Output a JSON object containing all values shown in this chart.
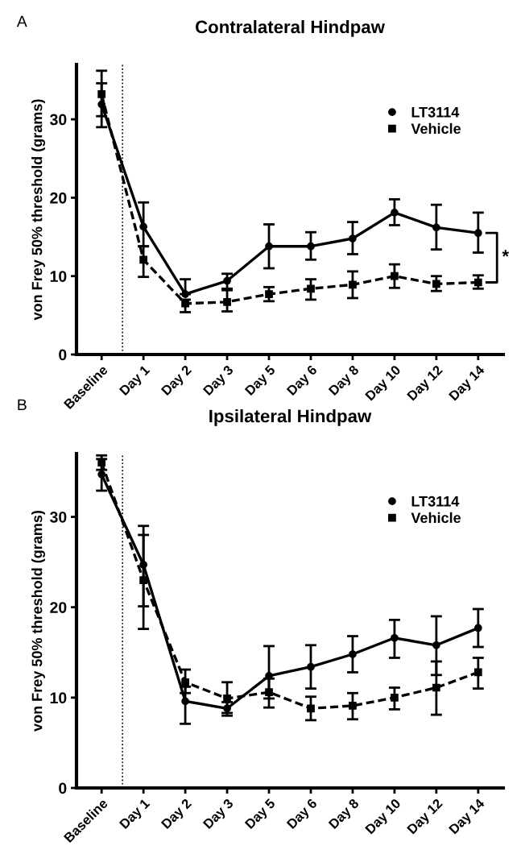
{
  "chart_data": [
    {
      "type": "line",
      "title": "Contralateral Hindpaw",
      "ylabel": "von Frey 50% threshold (grams)",
      "annotations": [
        "A",
        "*"
      ],
      "categories": [
        "Baseline",
        "Day 1",
        "Day 2",
        "Day 3",
        "Day 5",
        "Day 6",
        "Day 8",
        "Day 10",
        "Day 12",
        "Day 14"
      ],
      "series": [
        {
          "name": "LT3114",
          "color": "#000000",
          "marker": "circle",
          "line_style": "solid",
          "values": [
            31.9,
            16.3,
            7.7,
            9.4,
            13.8,
            13.8,
            14.8,
            18.1,
            16.2,
            15.5
          ],
          "errors": [
            [
              29.0,
              34.6
            ],
            [
              13.8,
              19.4
            ],
            [
              7.7,
              9.6
            ],
            [
              8.4,
              10.3
            ],
            [
              11.0,
              16.6
            ],
            [
              12.1,
              15.6
            ],
            [
              12.8,
              16.9
            ],
            [
              16.5,
              19.8
            ],
            [
              13.4,
              19.1
            ],
            [
              13.0,
              18.1
            ]
          ]
        },
        {
          "name": "Vehicle",
          "color": "#000000",
          "marker": "square",
          "line_style": "dashed",
          "values": [
            33.2,
            12.1,
            6.5,
            6.7,
            7.7,
            8.4,
            8.9,
            10.0,
            9.0,
            9.2
          ],
          "errors": [
            [
              30.4,
              36.2
            ],
            [
              9.9,
              13.8
            ],
            [
              5.4,
              7.0
            ],
            [
              5.5,
              8.2
            ],
            [
              6.8,
              8.6
            ],
            [
              7.0,
              9.6
            ],
            [
              7.2,
              10.6
            ],
            [
              8.5,
              11.5
            ],
            [
              8.1,
              10.0
            ],
            [
              8.4,
              10.1
            ]
          ]
        }
      ],
      "ylim": [
        0,
        37
      ],
      "yticks": [
        0,
        10,
        20,
        30
      ],
      "grid": false,
      "legend": "top right"
    },
    {
      "type": "line",
      "title": "Ipsilateral Hindpaw",
      "ylabel": "von Frey 50% threshold (grams)",
      "annotations": [
        "B"
      ],
      "categories": [
        "Baseline",
        "Day 1",
        "Day 2",
        "Day 3",
        "Day 5",
        "Day 6",
        "Day 8",
        "Day 10",
        "Day 12",
        "Day 14"
      ],
      "series": [
        {
          "name": "LT3114",
          "color": "#000000",
          "marker": "circle",
          "line_style": "solid",
          "values": [
            34.7,
            24.7,
            9.6,
            8.8,
            12.4,
            13.4,
            14.8,
            16.6,
            15.8,
            17.7
          ],
          "errors": [
            [
              32.9,
              36.4
            ],
            [
              17.6,
              29.0
            ],
            [
              7.1,
              11.2
            ],
            [
              8.0,
              9.5
            ],
            [
              9.9,
              15.7
            ],
            [
              11.0,
              15.8
            ],
            [
              12.8,
              16.8
            ],
            [
              14.4,
              18.6
            ],
            [
              12.5,
              19.0
            ],
            [
              15.6,
              19.8
            ]
          ]
        },
        {
          "name": "Vehicle",
          "color": "#000000",
          "marker": "square",
          "line_style": "dashed",
          "values": [
            36.0,
            23.0,
            11.7,
            9.9,
            10.6,
            8.8,
            9.1,
            10.0,
            11.1,
            12.8
          ],
          "errors": [
            [
              35.2,
              36.8
            ],
            [
              20.1,
              28.0
            ],
            [
              10.5,
              13.1
            ],
            [
              8.3,
              11.7
            ],
            [
              8.9,
              12.1
            ],
            [
              7.5,
              10.1
            ],
            [
              7.6,
              10.5
            ],
            [
              8.7,
              11.1
            ],
            [
              8.1,
              14.0
            ],
            [
              11.0,
              14.4
            ]
          ]
        }
      ],
      "ylim": [
        0,
        37
      ],
      "yticks": [
        0,
        10,
        20,
        30
      ],
      "grid": false,
      "legend": "top right"
    }
  ]
}
